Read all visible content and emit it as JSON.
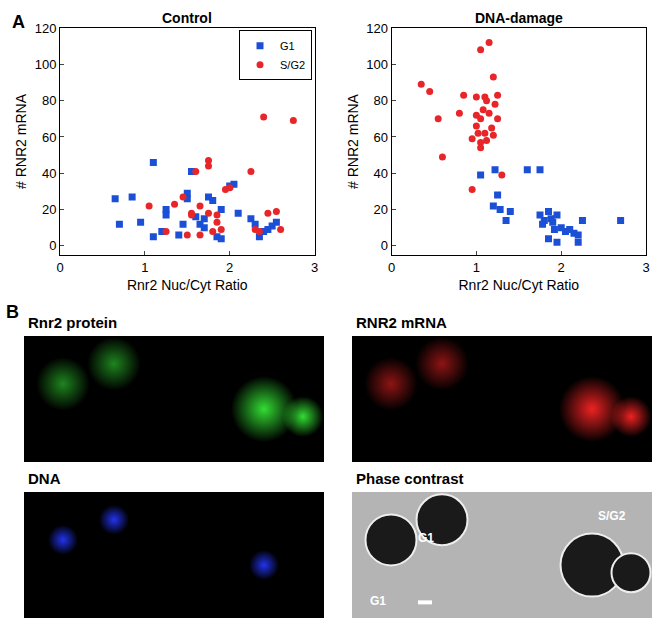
{
  "chart_data": [
    {
      "type": "scatter",
      "title": "Control",
      "x_label": "Rnr2 Nuc/Cyt Ratio",
      "y_label": "# RNR2 mRNA",
      "xlim": [
        0,
        3
      ],
      "xticks": [
        0,
        1,
        2,
        3
      ],
      "ylim": [
        -5,
        120
      ],
      "yticks": [
        0,
        20,
        40,
        60,
        80,
        100,
        120
      ],
      "grid": false,
      "legend": "upper right",
      "series": [
        {
          "name": "G1",
          "color": "#1a4fd6",
          "marker": "square",
          "x": [
            0.65,
            0.7,
            0.85,
            0.95,
            1.1,
            1.1,
            1.25,
            1.25,
            1.4,
            1.5,
            1.5,
            1.55,
            1.6,
            1.65,
            1.7,
            1.7,
            1.75,
            1.8,
            1.85,
            1.9,
            1.9,
            2.0,
            2.05,
            2.1,
            2.25,
            2.3,
            2.35,
            2.4,
            2.45,
            2.5,
            2.55,
            1.45,
            1.2
          ],
          "values": [
            26,
            12,
            27,
            13,
            46,
            5,
            20,
            17,
            6,
            29,
            26,
            41,
            16,
            12,
            15,
            10,
            27,
            25,
            5,
            4,
            20,
            33,
            34,
            18,
            15,
            12,
            5,
            8,
            9,
            11,
            13,
            12,
            8
          ]
        },
        {
          "name": "S/G2",
          "color": "#e8262a",
          "marker": "circle",
          "x": [
            1.05,
            1.25,
            1.35,
            1.45,
            1.55,
            1.55,
            1.6,
            1.65,
            1.75,
            1.75,
            1.8,
            1.85,
            1.9,
            1.95,
            2.0,
            1.65,
            1.75,
            2.25,
            2.3,
            2.4,
            2.45,
            2.55,
            2.6,
            2.75,
            1.85,
            2.35,
            1.5
          ],
          "values": [
            22,
            8,
            23,
            27,
            18,
            17,
            41,
            6,
            47,
            44,
            8,
            13,
            9,
            31,
            32,
            22,
            18,
            41,
            9,
            71,
            18,
            19,
            9,
            69,
            17,
            8,
            6
          ]
        }
      ]
    },
    {
      "type": "scatter",
      "title": "DNA-damage",
      "x_label": "Rnr2 Nuc/Cyt Ratio",
      "y_label": "# RNR2 mRNA",
      "xlim": [
        0,
        3
      ],
      "xticks": [
        0,
        1,
        2,
        3
      ],
      "ylim": [
        -5,
        120
      ],
      "yticks": [
        0,
        20,
        40,
        60,
        80,
        100,
        120
      ],
      "grid": false,
      "series": [
        {
          "name": "G1",
          "color": "#1a4fd6",
          "marker": "square",
          "x": [
            1.05,
            1.2,
            1.22,
            1.25,
            1.28,
            1.35,
            1.4,
            1.6,
            1.75,
            1.75,
            1.78,
            1.8,
            1.85,
            1.88,
            1.9,
            1.92,
            1.95,
            1.95,
            2.0,
            2.05,
            2.15,
            2.2,
            2.2,
            2.25,
            2.7,
            1.85,
            2.1
          ],
          "values": [
            39,
            22,
            42,
            28,
            20,
            14,
            19,
            42,
            42,
            17,
            12,
            14,
            19,
            15,
            13,
            9,
            2,
            17,
            10,
            8,
            7,
            2,
            6,
            14,
            14,
            4,
            9
          ]
        },
        {
          "name": "S/G2",
          "color": "#e8262a",
          "marker": "circle",
          "x": [
            0.35,
            0.45,
            0.55,
            0.6,
            0.8,
            0.85,
            0.95,
            0.95,
            1.0,
            1.0,
            1.02,
            1.05,
            1.05,
            1.05,
            1.05,
            1.08,
            1.1,
            1.1,
            1.12,
            1.15,
            1.15,
            1.2,
            1.2,
            1.22,
            1.25,
            1.25,
            1.3,
            1.0,
            1.12,
            1.18
          ],
          "values": [
            89,
            85,
            70,
            49,
            73,
            83,
            31,
            59,
            82,
            66,
            62,
            108,
            70,
            57,
            54,
            75,
            82,
            62,
            80,
            112,
            73,
            93,
            61,
            78,
            83,
            70,
            39,
            72,
            58,
            65
          ]
        }
      ]
    }
  ],
  "panel_labels": [
    "A",
    "B"
  ],
  "images": [
    {
      "title": "Rnr2 protein",
      "color": "#33dd33"
    },
    {
      "title": "RNR2 mRNA",
      "color": "#ee2222"
    },
    {
      "title": "DNA",
      "color": "#2233ee"
    },
    {
      "title": "Phase contrast",
      "color": "#b4b4b4",
      "cell_labels": [
        "G1",
        "G1",
        "S/G2"
      ]
    }
  ]
}
